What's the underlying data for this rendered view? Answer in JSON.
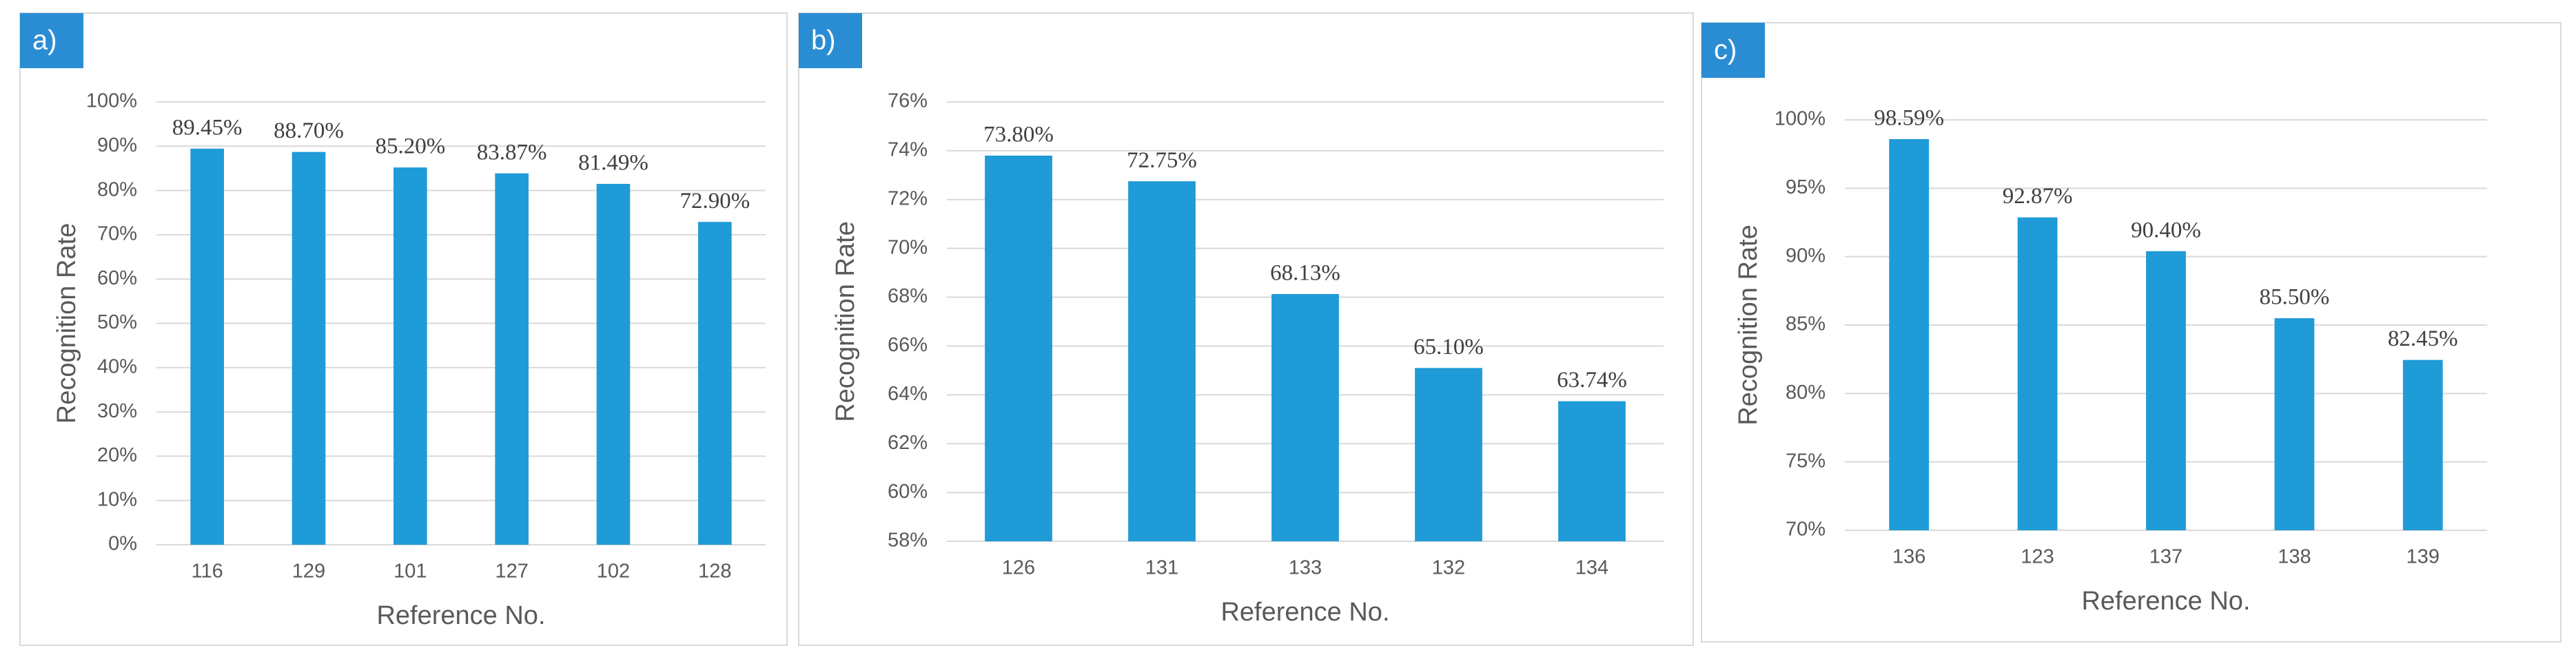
{
  "chart_data": [
    {
      "type": "bar",
      "label": "a)",
      "xlabel": "Reference No.",
      "ylabel": "Recognition Rate",
      "categories": [
        "116",
        "129",
        "101",
        "127",
        "102",
        "128"
      ],
      "values": [
        89.45,
        88.7,
        85.2,
        83.87,
        81.49,
        72.9
      ],
      "value_labels": [
        "89.45%",
        "88.70%",
        "85.20%",
        "83.87%",
        "81.49%",
        "72.90%"
      ],
      "color": "#1f9bd7",
      "grid": true,
      "ylim": [
        0,
        100
      ],
      "yticks": [
        {
          "value": 0,
          "label": "0%"
        },
        {
          "value": 10,
          "label": "10%"
        },
        {
          "value": 20,
          "label": "20%"
        },
        {
          "value": 30,
          "label": "30%"
        },
        {
          "value": 40,
          "label": "40%"
        },
        {
          "value": 50,
          "label": "50%"
        },
        {
          "value": 60,
          "label": "60%"
        },
        {
          "value": 70,
          "label": "70%"
        },
        {
          "value": 80,
          "label": "80%"
        },
        {
          "value": 90,
          "label": "90%"
        },
        {
          "value": 100,
          "label": "100%"
        }
      ]
    },
    {
      "type": "bar",
      "label": "b)",
      "xlabel": "Reference No.",
      "ylabel": "Recognition Rate",
      "categories": [
        "126",
        "131",
        "133",
        "132",
        "134"
      ],
      "values": [
        73.8,
        72.75,
        68.13,
        65.1,
        63.74
      ],
      "value_labels": [
        "73.80%",
        "72.75%",
        "68.13%",
        "65.10%",
        "63.74%"
      ],
      "color": "#1f9bd7",
      "grid": true,
      "ylim": [
        58,
        76
      ],
      "yticks": [
        {
          "value": 58,
          "label": "58%"
        },
        {
          "value": 60,
          "label": "60%"
        },
        {
          "value": 62,
          "label": "62%"
        },
        {
          "value": 64,
          "label": "64%"
        },
        {
          "value": 66,
          "label": "66%"
        },
        {
          "value": 68,
          "label": "68%"
        },
        {
          "value": 70,
          "label": "70%"
        },
        {
          "value": 72,
          "label": "72%"
        },
        {
          "value": 74,
          "label": "74%"
        },
        {
          "value": 76,
          "label": "76%"
        }
      ]
    },
    {
      "type": "bar",
      "label": "c)",
      "xlabel": "Reference No.",
      "ylabel": "Recognition Rate",
      "categories": [
        "136",
        "123",
        "137",
        "138",
        "139"
      ],
      "values": [
        98.59,
        92.87,
        90.4,
        85.5,
        82.45
      ],
      "value_labels": [
        "98.59%",
        "92.87%",
        "90.40%",
        "85.50%",
        "82.45%"
      ],
      "color": "#1f9bd7",
      "grid": true,
      "ylim": [
        70,
        100
      ],
      "yticks": [
        {
          "value": 70,
          "label": "70%"
        },
        {
          "value": 75,
          "label": "75%"
        },
        {
          "value": 80,
          "label": "80%"
        },
        {
          "value": 85,
          "label": "85%"
        },
        {
          "value": 90,
          "label": "90%"
        },
        {
          "value": 95,
          "label": "95%"
        },
        {
          "value": 100,
          "label": "100%"
        }
      ]
    }
  ]
}
